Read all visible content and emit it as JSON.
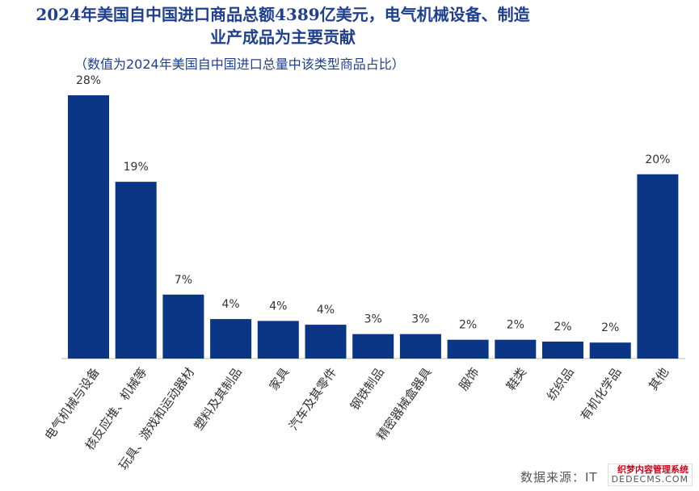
{
  "title_line1": "2024年美国自中国进口商品总额4389亿美元，电气机械设备、制造",
  "title_line2": "业产成品为主要贡献",
  "subtitle": "（数值为2024年美国自中国进口总量中该类型商品占比）",
  "source": "数据来源：IT",
  "watermark_top": "织梦内容管理系统",
  "watermark_bottom": "DEDECMS.COM",
  "colors": {
    "bar": "#0b3585",
    "title": "#1f3f8f",
    "axis": "#bbbbbb"
  },
  "chart_data": {
    "type": "bar",
    "categories": [
      "电气机械与设备",
      "核反应堆、机械等",
      "玩具、游戏和运动器材",
      "塑料及其制品",
      "家具",
      "汽车及其零件",
      "钢铁制品",
      "精密器械盒器具",
      "服饰",
      "鞋类",
      "纺织品",
      "有机化学品",
      "其他"
    ],
    "values": [
      28,
      19,
      7,
      4,
      4,
      4,
      3,
      3,
      2,
      2,
      2,
      2,
      20
    ],
    "value_labels": [
      "28%",
      "19%",
      "7%",
      "4%",
      "4%",
      "4%",
      "3%",
      "3%",
      "2%",
      "2%",
      "2%",
      "2%",
      "20%"
    ],
    "value_heights": [
      28,
      18.8,
      6.8,
      4.2,
      4.0,
      3.6,
      2.6,
      2.6,
      2.0,
      2.0,
      1.8,
      1.7,
      19.6
    ],
    "unit": "%"
  }
}
